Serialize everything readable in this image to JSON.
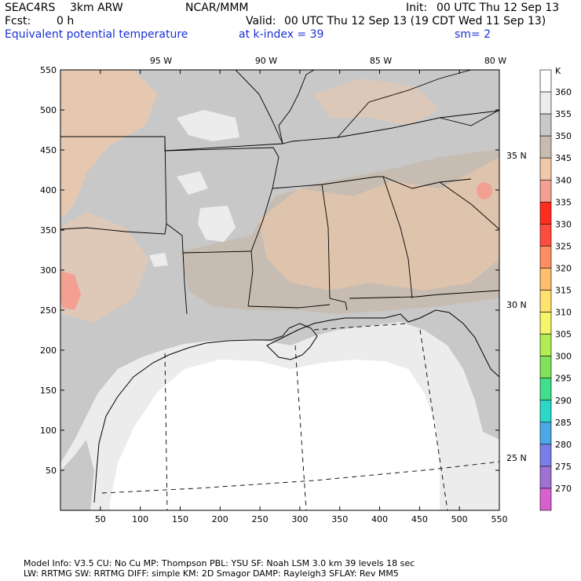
{
  "header": {
    "project": "SEAC4RS",
    "model": "3km ARW",
    "org": "NCAR/MMM",
    "init_label": "Init:",
    "init": "00 UTC Thu 12 Sep 13",
    "fcst_label": "Fcst:",
    "fcst": "0 h",
    "valid_label": "Valid:",
    "valid": "00 UTC Thu 12 Sep 13 (19 CDT Wed 11 Sep 13)",
    "field": "Equivalent potential temperature",
    "level": "at k-index =  39",
    "smooth": "sm= 2"
  },
  "lon_labels": [
    "95 W",
    "90 W",
    "85 W",
    "80 W"
  ],
  "lat_labels": [
    "35 N",
    "30 N",
    "25 N"
  ],
  "x_ticks": [
    "50",
    "100",
    "150",
    "200",
    "250",
    "300",
    "350",
    "400",
    "450",
    "500",
    "550"
  ],
  "y_ticks": [
    "50",
    "100",
    "150",
    "200",
    "250",
    "300",
    "350",
    "400",
    "450",
    "500",
    "550"
  ],
  "colorbar": {
    "unit": "K",
    "levels": [
      {
        "label": "360",
        "color": "#ffffff"
      },
      {
        "label": "355",
        "color": "#ececec"
      },
      {
        "label": "350",
        "color": "#c8c8c8"
      },
      {
        "label": "345",
        "color": "#c7bcb2"
      },
      {
        "label": "340",
        "color": "#f0c8aa"
      },
      {
        "label": "335",
        "color": "#f3a093"
      },
      {
        "label": "330",
        "color": "#ff2d1e"
      },
      {
        "label": "325",
        "color": "#ff4c3c"
      },
      {
        "label": "320",
        "color": "#ff8e62"
      },
      {
        "label": "315",
        "color": "#ffbf6e"
      },
      {
        "label": "310",
        "color": "#ffe36e"
      },
      {
        "label": "305",
        "color": "#f5f56a"
      },
      {
        "label": "300",
        "color": "#b2ed54"
      },
      {
        "label": "295",
        "color": "#7fe25a"
      },
      {
        "label": "290",
        "color": "#40e08a"
      },
      {
        "label": "285",
        "color": "#2ad8c8"
      },
      {
        "label": "280",
        "color": "#4aa8e8"
      },
      {
        "label": "275",
        "color": "#7a7ee6"
      },
      {
        "label": "270",
        "color": "#a070d2"
      },
      {
        "label": "",
        "color": "#d860d0"
      }
    ]
  },
  "footer": {
    "line1": "Model Info: V3.5      CU: No Cu    MP: Thompson     PBL: YSU        SF: Noah LSM     3.0 km   39 levels   18 sec",
    "line2": "LW: RRTMG    SW: RRTMG   DIFF: simple KM: 2D Smagor DAMP: Rayleigh3   SFLAY: Rev MM5"
  },
  "colors": {
    "land_gray": "#c8c8c8",
    "land_brown": "#c7bcb2",
    "land_tan": "#f0c8aa",
    "warm_spot": "#f3a093",
    "sea_light": "#ececec",
    "sea_white": "#ffffff",
    "header_blue": "#1a2fd4"
  }
}
